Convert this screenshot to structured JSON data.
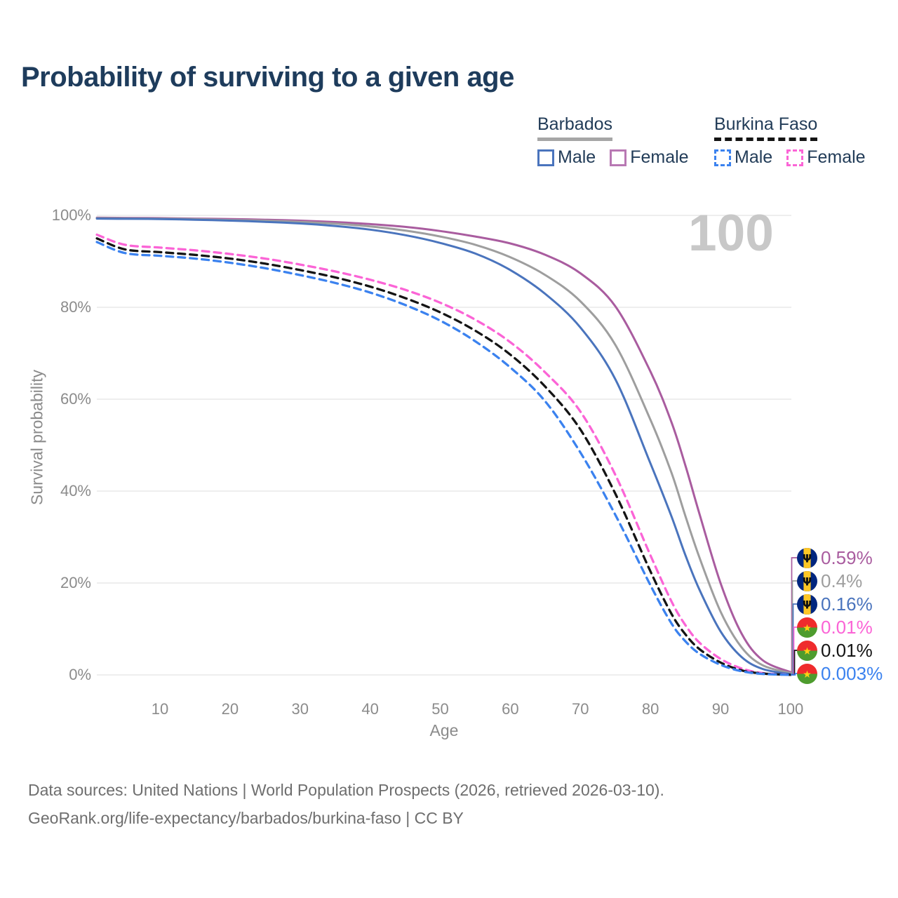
{
  "title": "Probability of surviving to a given age",
  "watermark": "100",
  "legend": {
    "groups": [
      {
        "name": "Barbados",
        "underline": "solid",
        "underline_color": "#a6a6a6",
        "items": [
          {
            "label": "Male",
            "color": "#4a74bd",
            "dashed": false
          },
          {
            "label": "Female",
            "color": "#b878b3",
            "dashed": false
          }
        ]
      },
      {
        "name": "Burkina Faso",
        "underline": "dashed",
        "underline_color": "#141414",
        "items": [
          {
            "label": "Male",
            "color": "#3b82ef",
            "dashed": true
          },
          {
            "label": "Female",
            "color": "#fb64d6",
            "dashed": true
          }
        ]
      }
    ]
  },
  "axes": {
    "xlabel": "Age",
    "ylabel": "Survival probability"
  },
  "footer": {
    "line1": "Data sources: United Nations | World Population Prospects (2026, retrieved 2026-03-10).",
    "line2": "GeoRank.org/life-expectancy/barbados/burkina-faso | CC BY"
  },
  "chart_data": {
    "type": "line",
    "title": "Probability of surviving to a given age",
    "xlabel": "Age",
    "ylabel": "Survival probability",
    "x_ticks": [
      10,
      20,
      30,
      40,
      50,
      60,
      70,
      80,
      90,
      100
    ],
    "y_ticks": [
      0,
      20,
      40,
      60,
      80,
      100
    ],
    "y_tick_suffix": "%",
    "xlim": [
      1,
      100
    ],
    "ylim": [
      0,
      100
    ],
    "grid": true,
    "hover_age_indicator": "100",
    "ages": [
      1,
      5,
      10,
      15,
      20,
      25,
      30,
      35,
      40,
      45,
      50,
      55,
      60,
      65,
      70,
      75,
      80,
      83,
      85,
      87,
      90,
      93,
      96,
      100
    ],
    "series": [
      {
        "name": "Barbados Female",
        "color": "#a95c9f",
        "dash": false,
        "flag": "barbados",
        "end_label": "0.59%",
        "values": [
          99.5,
          99.45,
          99.4,
          99.3,
          99.2,
          99.05,
          98.85,
          98.55,
          98.1,
          97.5,
          96.6,
          95.4,
          93.9,
          91.4,
          87.4,
          80.2,
          66.0,
          55.0,
          45.5,
          35.0,
          20.0,
          9.0,
          3.2,
          0.59
        ]
      },
      {
        "name": "Barbados",
        "color": "#9e9e9e",
        "dash": false,
        "flag": "barbados",
        "end_label": "0.4%",
        "values": [
          99.4,
          99.35,
          99.3,
          99.2,
          99.0,
          98.85,
          98.6,
          98.2,
          97.6,
          96.7,
          95.4,
          93.6,
          90.9,
          87.0,
          81.3,
          71.8,
          55.5,
          44.0,
          34.5,
          25.5,
          13.8,
          6.0,
          2.1,
          0.4
        ]
      },
      {
        "name": "Barbados Male",
        "color": "#4a74bd",
        "dash": false,
        "flag": "barbados",
        "end_label": "0.16%",
        "values": [
          99.3,
          99.25,
          99.2,
          99.05,
          98.85,
          98.6,
          98.25,
          97.7,
          96.9,
          95.7,
          94.0,
          91.7,
          88.1,
          82.9,
          75.6,
          64.3,
          46.0,
          34.5,
          26.0,
          18.5,
          9.5,
          3.9,
          1.3,
          0.16
        ]
      },
      {
        "name": "Burkina Faso Female",
        "color": "#fb64d6",
        "dash": true,
        "flag": "burkina-faso",
        "end_label": "0.01%",
        "values": [
          95.8,
          93.6,
          93.0,
          92.4,
          91.6,
          90.6,
          89.3,
          87.8,
          86.0,
          83.8,
          81.0,
          77.3,
          72.4,
          65.8,
          57.3,
          43.5,
          26.0,
          16.0,
          10.8,
          7.0,
          3.5,
          1.4,
          0.4,
          0.01
        ]
      },
      {
        "name": "Burkina Faso",
        "color": "#141414",
        "dash": true,
        "flag": "burkina-faso",
        "end_label": "0.01%",
        "values": [
          95.0,
          92.6,
          92.0,
          91.4,
          90.6,
          89.5,
          88.1,
          86.5,
          84.5,
          82.0,
          78.9,
          74.9,
          69.7,
          62.7,
          53.4,
          39.4,
          22.5,
          13.3,
          8.8,
          5.6,
          2.7,
          1.0,
          0.3,
          0.01
        ]
      },
      {
        "name": "Burkina Faso Male",
        "color": "#3b82ef",
        "dash": true,
        "flag": "burkina-faso",
        "end_label": "0.003%",
        "values": [
          94.2,
          91.8,
          91.2,
          90.6,
          89.7,
          88.5,
          87.0,
          85.3,
          83.2,
          80.5,
          77.1,
          72.6,
          66.9,
          59.5,
          48.4,
          34.8,
          19.5,
          11.2,
          7.3,
          4.6,
          2.2,
          0.8,
          0.22,
          0.003
        ]
      }
    ],
    "flag_colors": {
      "barbados": {
        "blue": "#00267F",
        "yellow": "#FFC726",
        "trident": "#101010"
      },
      "burkina-faso": {
        "red": "#EF2B2D",
        "green": "#4e9c2e",
        "star": "#FCD116"
      }
    }
  }
}
